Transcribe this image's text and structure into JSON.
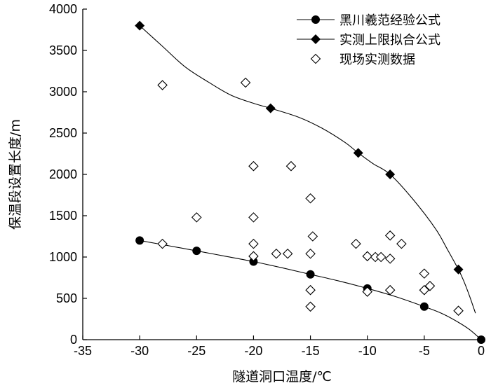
{
  "chart_data": {
    "type": "scatter",
    "xlabel": "隧道洞口温度/℃",
    "ylabel": "保温段设置长度/m",
    "xlim": [
      -35,
      0
    ],
    "ylim": [
      0,
      4000
    ],
    "xticks": [
      -35,
      -30,
      -25,
      -20,
      -15,
      -10,
      -5,
      0
    ],
    "yticks": [
      0,
      500,
      1000,
      1500,
      2000,
      2500,
      3000,
      3500,
      4000
    ],
    "legend_position": "top-right",
    "grid": false,
    "series": [
      {
        "name": "黑川羲范经验公式",
        "marker": "circle-filled",
        "line": true,
        "points": [
          [
            -30,
            1200
          ],
          [
            -25,
            1075
          ],
          [
            -20,
            945
          ],
          [
            -15,
            790
          ],
          [
            -10,
            620
          ],
          [
            -5,
            400
          ],
          [
            0,
            0
          ]
        ],
        "curve": [
          [
            -30,
            1200
          ],
          [
            -27.5,
            1138
          ],
          [
            -25,
            1075
          ],
          [
            -22.5,
            1010
          ],
          [
            -20,
            945
          ],
          [
            -17.5,
            870
          ],
          [
            -15,
            790
          ],
          [
            -12.5,
            710
          ],
          [
            -10,
            620
          ],
          [
            -7.5,
            520
          ],
          [
            -5,
            400
          ],
          [
            -3.5,
            320
          ],
          [
            -2,
            210
          ],
          [
            -1,
            120
          ],
          [
            0,
            0
          ]
        ]
      },
      {
        "name": "实测上限拟合公式",
        "marker": "diamond-filled",
        "line": true,
        "points": [
          [
            -30,
            3800
          ],
          [
            -18.5,
            2800
          ],
          [
            -10.8,
            2260
          ],
          [
            -8,
            2000
          ],
          [
            -2,
            850
          ]
        ],
        "curve": [
          [
            -30,
            3800
          ],
          [
            -28,
            3550
          ],
          [
            -26,
            3300
          ],
          [
            -24,
            3120
          ],
          [
            -22,
            2960
          ],
          [
            -20,
            2860
          ],
          [
            -18.5,
            2800
          ],
          [
            -16,
            2690
          ],
          [
            -14,
            2560
          ],
          [
            -12,
            2390
          ],
          [
            -10.8,
            2260
          ],
          [
            -9.5,
            2130
          ],
          [
            -8,
            2000
          ],
          [
            -6,
            1700
          ],
          [
            -4,
            1340
          ],
          [
            -3,
            1100
          ],
          [
            -2,
            850
          ],
          [
            -1.5,
            700
          ],
          [
            -1,
            520
          ],
          [
            -0.5,
            320
          ]
        ]
      },
      {
        "name": "现场实测数据",
        "marker": "diamond-open",
        "line": false,
        "points": [
          [
            -28,
            3080
          ],
          [
            -20.7,
            3110
          ],
          [
            -20,
            2100
          ],
          [
            -16.7,
            2100
          ],
          [
            -25,
            1480
          ],
          [
            -20,
            1480
          ],
          [
            -15,
            1710
          ],
          [
            -28,
            1160
          ],
          [
            -20,
            1160
          ],
          [
            -20,
            1010
          ],
          [
            -18,
            1040
          ],
          [
            -17,
            1040
          ],
          [
            -15,
            1040
          ],
          [
            -14.8,
            1250
          ],
          [
            -15,
            600
          ],
          [
            -15,
            400
          ],
          [
            -11,
            1160
          ],
          [
            -10,
            1010
          ],
          [
            -9.3,
            1000
          ],
          [
            -8.8,
            1000
          ],
          [
            -8,
            1260
          ],
          [
            -8,
            980
          ],
          [
            -7,
            1160
          ],
          [
            -8,
            600
          ],
          [
            -10,
            580
          ],
          [
            -5,
            800
          ],
          [
            -5,
            600
          ],
          [
            -4.5,
            650
          ],
          [
            -2,
            350
          ]
        ]
      }
    ]
  }
}
